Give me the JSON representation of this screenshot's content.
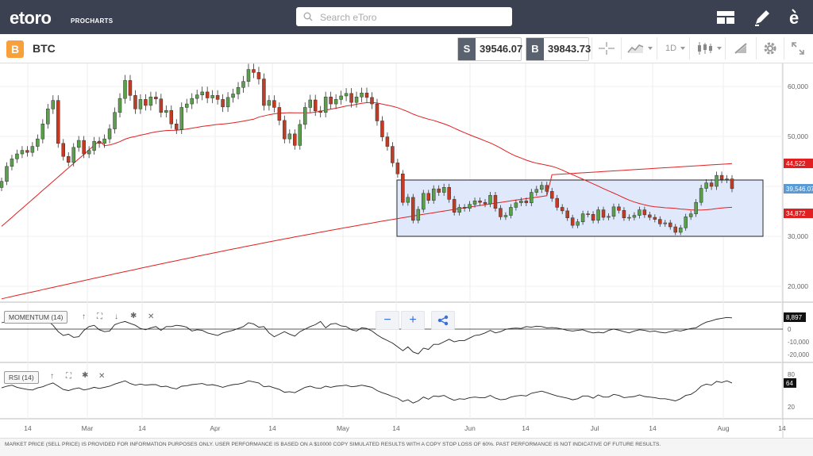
{
  "header": {
    "logo_text": "etoro",
    "logo_sub": "PROCHARTS",
    "search_placeholder": "Search eToro"
  },
  "toolbar": {
    "symbol_badge": "B",
    "symbol": "BTC",
    "sell_tag": "S",
    "sell_price": "39546.07",
    "buy_tag": "B",
    "buy_price": "39843.73",
    "timeframe": "1D"
  },
  "chart_data": {
    "type": "candlestick",
    "symbol": "BTC",
    "y_ticks": [
      "60,000",
      "50,000",
      "40,000",
      "30,000",
      "20,000"
    ],
    "x_ticks": [
      "14",
      "Mar",
      "14",
      "Apr",
      "14",
      "May",
      "14",
      "Jun",
      "14",
      "Jul",
      "14",
      "Aug",
      "14"
    ],
    "price_markers": [
      {
        "label": "44,522",
        "color": "#e02020"
      },
      {
        "label": "39,546.07",
        "color": "#5b9bd5"
      },
      {
        "label": "34,872",
        "color": "#e02020"
      }
    ],
    "moving_averages": [
      "MA (short)",
      "MA (long)"
    ],
    "closes": [
      41000,
      44000,
      45500,
      46500,
      47200,
      46800,
      48000,
      49500,
      52500,
      55500,
      57200,
      48600,
      46000,
      44800,
      47800,
      49200,
      46500,
      47200,
      49000,
      48600,
      49500,
      51500,
      54800,
      57600,
      61200,
      58200,
      55500,
      57400,
      56200,
      57900,
      57500,
      54800,
      55200,
      52500,
      51400,
      55800,
      56500,
      57600,
      58300,
      58900,
      57700,
      58200,
      57400,
      55900,
      57800,
      58500,
      59800,
      61000,
      63400,
      62800,
      61500,
      56200,
      57200,
      55800,
      53200,
      49500,
      50500,
      48200,
      52400,
      55800,
      57300,
      55100,
      54800,
      57900,
      56500,
      57400,
      58100,
      58600,
      56800,
      57900,
      58700,
      57800,
      56500,
      53100,
      49900,
      48000,
      44700,
      42500,
      36800,
      37800,
      33200,
      35400,
      38600,
      37200,
      39500,
      38800,
      39800,
      37400,
      34800,
      35800,
      35600,
      36400,
      37100,
      36800,
      36500,
      38200,
      35600,
      33900,
      34200,
      35800,
      36700,
      37100,
      36700,
      38800,
      39400,
      40200,
      39000,
      37600,
      35800,
      35100,
      33700,
      32200,
      32900,
      34500,
      34400,
      33200,
      35300,
      33800,
      34000,
      35900,
      35200,
      33700,
      33800,
      34200,
      35300,
      34300,
      33800,
      33400,
      32500,
      32700,
      31900,
      30800,
      31700,
      33900,
      34500,
      36800,
      39600,
      40700,
      40000,
      42200,
      41400,
      41500,
      39546
    ]
  },
  "indicators": {
    "momentum": {
      "label": "MOMENTUM (14)",
      "axis_ticks": [
        "8,897",
        "0",
        "-10,000",
        "-20,000"
      ],
      "series": [
        5000,
        6000,
        9500,
        8000,
        9000,
        7000,
        5500,
        6000,
        8000,
        6500,
        3000,
        -2000,
        -5000,
        -4000,
        -6500,
        -6000,
        -1000,
        2000,
        3000,
        -500,
        -2000,
        -1500,
        3500,
        5000,
        6000,
        4500,
        3000,
        500,
        -500,
        1000,
        2000,
        -1000,
        2000,
        2000,
        3000,
        2500,
        1500,
        -1500,
        -500,
        -1000,
        -3000,
        -4000,
        -5000,
        -3000,
        -2000,
        -1000,
        500,
        2000,
        5000,
        4000,
        1500,
        2000,
        -3000,
        -6000,
        -4000,
        -2000,
        -4000,
        -5500,
        -2000,
        0,
        2000,
        3500,
        6000,
        1000,
        4000,
        4500,
        2500,
        2000,
        -500,
        -1500,
        1000,
        500,
        -1500,
        -4500,
        -7000,
        -9000,
        -11000,
        -14000,
        -17000,
        -14000,
        -18000,
        -19500,
        -15000,
        -16000,
        -12000,
        -12000,
        -10000,
        -8000,
        -10000,
        -9000,
        -9000,
        -7000,
        -5000,
        -4500,
        -3000,
        -1000,
        -3000,
        -2000,
        -200,
        500,
        800,
        500,
        2000,
        1500,
        2300,
        2000,
        1000,
        1200,
        800,
        0,
        -1000,
        -1500,
        -1000,
        -500,
        -2000,
        -3000,
        -2500,
        -3000,
        -1000,
        0,
        -800,
        -2000,
        -3000,
        -1500,
        -500,
        -1000,
        -2000,
        -1500,
        -2500,
        -3000,
        -2000,
        -1000,
        -1500,
        -500,
        500,
        1000,
        3500,
        5500,
        6500,
        7800,
        8500,
        9200,
        8897
      ],
      "tools": [
        "up-arrow",
        "expand",
        "down-arrow",
        "gear",
        "close"
      ]
    },
    "rsi": {
      "label": "RSI (14)",
      "axis_ticks": [
        "80",
        "64",
        "20"
      ],
      "series": [
        55,
        58,
        60,
        56,
        54,
        52,
        51,
        55,
        57,
        61,
        64,
        58,
        52,
        50,
        53,
        55,
        51,
        53,
        56,
        54,
        56,
        58,
        62,
        65,
        68,
        63,
        60,
        62,
        60,
        61,
        61,
        57,
        58,
        55,
        53,
        58,
        59,
        61,
        62,
        63,
        60,
        61,
        59,
        56,
        59,
        61,
        62,
        64,
        68,
        66,
        64,
        57,
        58,
        55,
        52,
        47,
        48,
        46,
        51,
        56,
        58,
        55,
        54,
        58,
        56,
        58,
        59,
        60,
        57,
        58,
        60,
        58,
        56,
        50,
        46,
        43,
        39,
        36,
        30,
        33,
        27,
        31,
        38,
        34,
        40,
        39,
        41,
        36,
        32,
        35,
        34,
        37,
        38,
        37,
        37,
        41,
        36,
        33,
        34,
        38,
        40,
        41,
        40,
        45,
        47,
        49,
        46,
        43,
        40,
        38,
        36,
        33,
        35,
        40,
        40,
        36,
        42,
        38,
        38,
        43,
        41,
        37,
        38,
        39,
        42,
        39,
        38,
        37,
        35,
        35,
        33,
        31,
        35,
        41,
        43,
        49,
        58,
        62,
        60,
        67,
        65,
        68,
        64
      ],
      "tools": [
        "up-arrow",
        "expand",
        "gear",
        "close"
      ]
    }
  },
  "footer": {
    "disclaimer": "MARKET PRICE (SELL PRICE) IS PROVIDED FOR INFORMATION PURPOSES ONLY. USER PERFORMANCE IS BASED ON A $10000 COPY SIMULATED RESULTS WITH A COPY STOP LOSS OF 60%. PAST PERFORMANCE IS NOT INDICATIVE OF FUTURE RESULTS."
  }
}
